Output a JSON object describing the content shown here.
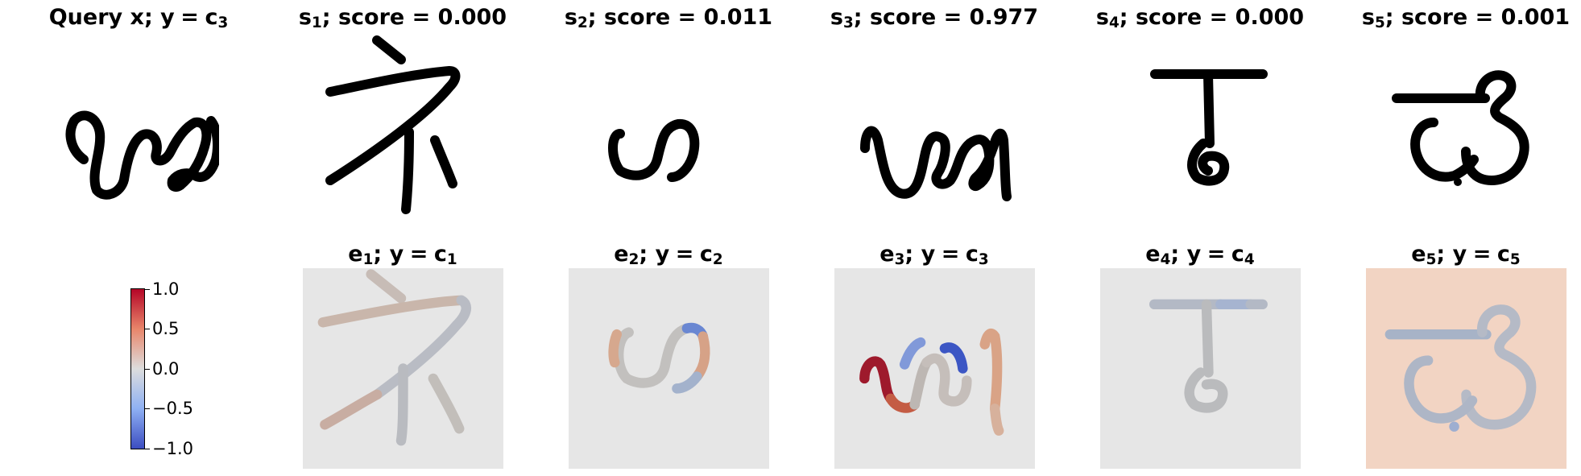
{
  "query": {
    "pre": "Query x; y",
    "eq": "=",
    "var": "c",
    "sub": "3"
  },
  "supports": [
    {
      "letter": "s",
      "sub": "1",
      "score_text": "; score = 0.000",
      "score": 0.0
    },
    {
      "letter": "s",
      "sub": "2",
      "score_text": "; score = 0.011",
      "score": 0.011
    },
    {
      "letter": "s",
      "sub": "3",
      "score_text": "; score = 0.977",
      "score": 0.977
    },
    {
      "letter": "s",
      "sub": "4",
      "score_text": "; score = 0.000",
      "score": 0.0
    },
    {
      "letter": "s",
      "sub": "5",
      "score_text": "; score = 0.001",
      "score": 0.001
    }
  ],
  "explanations": [
    {
      "letter": "e",
      "sub": "1",
      "mid": "; y",
      "eq": "=",
      "var": "c",
      "vsub": "1",
      "background_value": 0.0
    },
    {
      "letter": "e",
      "sub": "2",
      "mid": "; y",
      "eq": "=",
      "var": "c",
      "vsub": "2",
      "background_value": 0.0
    },
    {
      "letter": "e",
      "sub": "3",
      "mid": "; y",
      "eq": "=",
      "var": "c",
      "vsub": "3",
      "background_value": 0.0
    },
    {
      "letter": "e",
      "sub": "4",
      "mid": "; y",
      "eq": "=",
      "var": "c",
      "vsub": "4",
      "background_value": 0.0
    },
    {
      "letter": "e",
      "sub": "5",
      "mid": "; y",
      "eq": "=",
      "var": "c",
      "vsub": "5",
      "background_value": 0.35
    }
  ],
  "colorbar": {
    "colormap": "coolwarm",
    "min": -1.0,
    "max": 1.0,
    "ticks": [
      "1.0",
      "0.5",
      "0.0",
      "−0.5",
      "−1.0"
    ],
    "colors": {
      "low": "#3b4cc0",
      "mid": "#dddddd",
      "high": "#b40426"
    }
  }
}
